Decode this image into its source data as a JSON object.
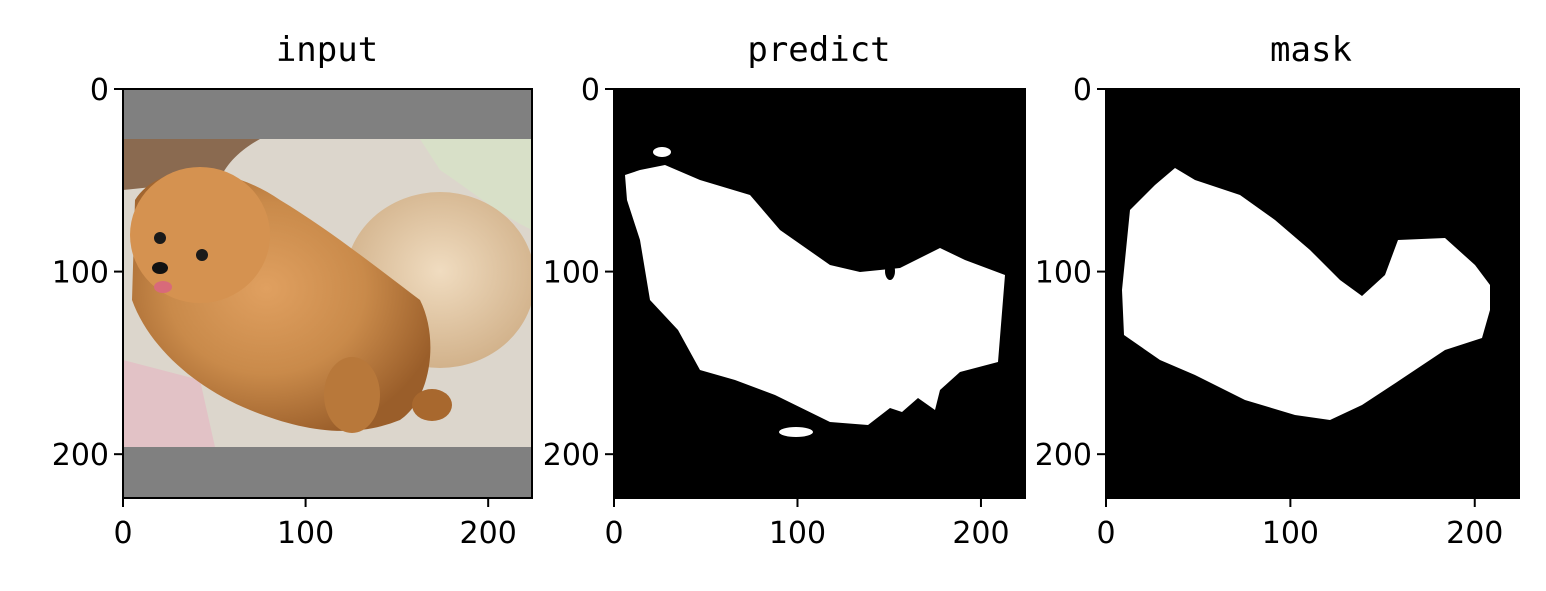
{
  "chart_data": [
    {
      "type": "image",
      "title": "input",
      "xlim": [
        0,
        224
      ],
      "ylim": [
        224,
        0
      ],
      "xticks": [
        0,
        100,
        200
      ],
      "yticks": [
        0,
        100,
        200
      ],
      "content": "photo of a pomeranian dog lying on a floral pillow, padded with gray bands top and bottom",
      "padding_rows": {
        "top": [
          0,
          27
        ],
        "bottom": [
          196,
          224
        ]
      },
      "padding_color": "#808080"
    },
    {
      "type": "image",
      "title": "predict",
      "xlim": [
        0,
        224
      ],
      "ylim": [
        224,
        0
      ],
      "xticks": [
        0,
        100,
        200
      ],
      "yticks": [
        0,
        100,
        200
      ],
      "content": "binary segmentation prediction mask, white foreground on black",
      "background_color": "#000000",
      "foreground_color": "#ffffff"
    },
    {
      "type": "image",
      "title": "mask",
      "xlim": [
        0,
        224
      ],
      "ylim": [
        224,
        0
      ],
      "xticks": [
        0,
        100,
        200
      ],
      "yticks": [
        0,
        100,
        200
      ],
      "content": "binary ground-truth mask, white foreground on black",
      "background_color": "#000000",
      "foreground_color": "#ffffff"
    }
  ]
}
